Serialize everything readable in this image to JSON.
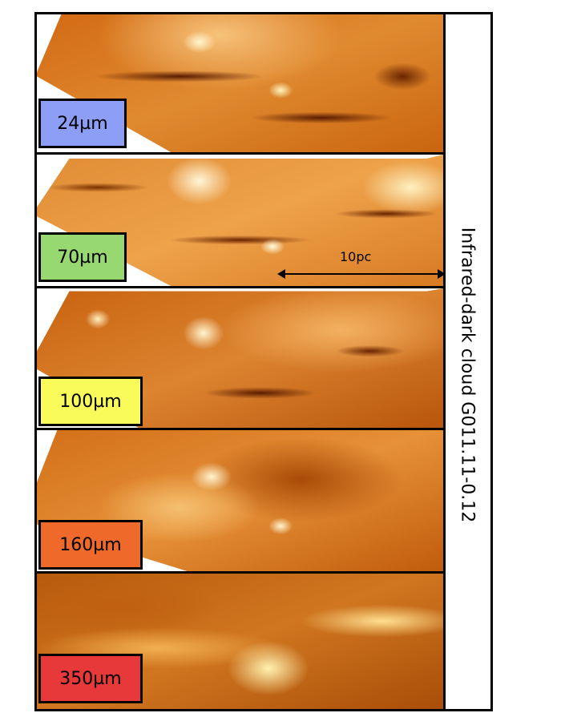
{
  "panels": [
    {
      "label": "24µm",
      "color": "#8c9ef5"
    },
    {
      "label": "70µm",
      "color": "#98d870"
    },
    {
      "label": "100µm",
      "color": "#f8fb5a"
    },
    {
      "label": "160µm",
      "color": "#ef6a2a"
    },
    {
      "label": "350µm",
      "color": "#e8393a"
    }
  ],
  "scale_bar": {
    "label": "10pc"
  },
  "side_title": "Infrared-dark cloud G011.11-0.12"
}
